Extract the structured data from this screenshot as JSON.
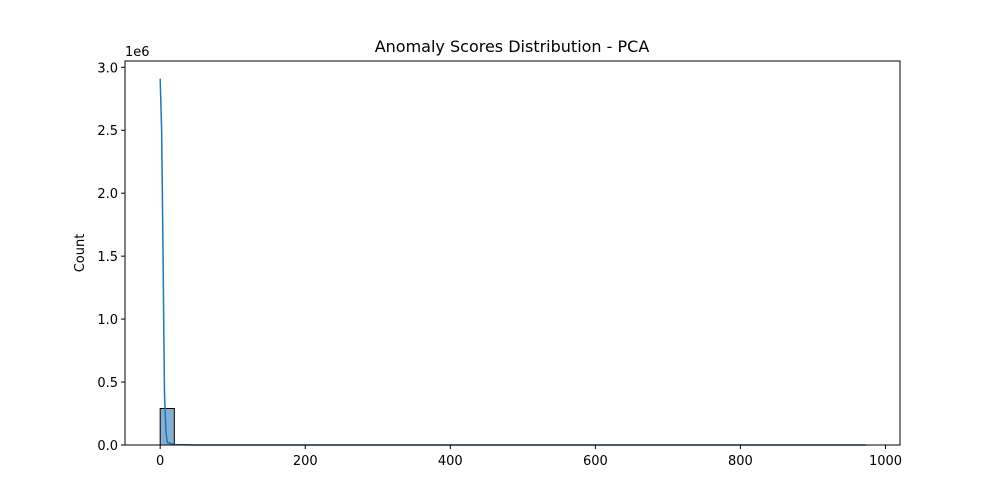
{
  "chart_data": {
    "type": "bar",
    "title": "Anomaly Scores Distribution - PCA",
    "xlabel": "",
    "ylabel": "Count",
    "y_offset_label": "1e6",
    "xlim": [
      -48.5,
      1020
    ],
    "ylim": [
      0,
      3050000
    ],
    "x_ticks": [
      0,
      200,
      400,
      600,
      800,
      1000
    ],
    "x_tick_labels": [
      "0",
      "200",
      "400",
      "600",
      "800",
      "1000"
    ],
    "y_ticks": [
      0,
      500000,
      1000000,
      1500000,
      2000000,
      2500000,
      3000000
    ],
    "y_tick_labels": [
      "0.0",
      "0.5",
      "1.0",
      "1.5",
      "2.0",
      "2.5",
      "3.0"
    ],
    "histogram": {
      "bins": [
        {
          "x_start": 0,
          "x_end": 19.5,
          "count": 290000
        },
        {
          "x_start": 19.5,
          "x_end": 973,
          "count": 0
        }
      ]
    },
    "kde_curve": {
      "x": [
        0,
        2,
        4,
        5,
        6,
        8,
        10,
        20,
        50,
        100,
        200,
        400,
        600,
        800,
        973
      ],
      "y": [
        2910000,
        2500000,
        1500000,
        900000,
        400000,
        100000,
        20000,
        3000,
        0,
        0,
        0,
        0,
        0,
        0,
        0
      ]
    },
    "colors": {
      "bar_fill": "#86aed3",
      "bar_edge": "#000000",
      "line": "#1f77b4"
    },
    "grid": false
  }
}
